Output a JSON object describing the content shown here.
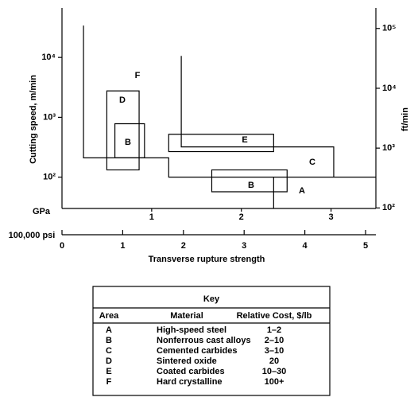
{
  "chart_data": {
    "type": "region",
    "y_label": "Cutting speed, m/min",
    "y2_label": "ft/min",
    "x_label": "GPa",
    "x2_label": "100,000 psi",
    "x_title": "Transverse rupture strength",
    "xlim": [
      0,
      3.5
    ],
    "xticks": [
      1,
      2,
      3
    ],
    "x2lim": [
      0,
      5.17
    ],
    "x2ticks": [
      0,
      1,
      2,
      3,
      4,
      5
    ],
    "ylim": [
      30,
      67000
    ],
    "yticks": [
      {
        "value": 100,
        "label": "10²"
      },
      {
        "value": 1000,
        "label": "10³"
      },
      {
        "value": 10000,
        "label": "10⁴"
      }
    ],
    "y2lim": [
      98,
      220000
    ],
    "y2ticks": [
      {
        "value": 100,
        "label": "10²"
      },
      {
        "value": 1000,
        "label": "10³"
      },
      {
        "value": 10000,
        "label": "10⁴"
      },
      {
        "value": 100000,
        "label": "10⁵"
      }
    ],
    "log_y": true,
    "color": "#000000",
    "regions": [
      {
        "label": "F",
        "x": [
          0.24,
          0.24,
          1.19,
          1.19,
          3.5
        ],
        "y": [
          34000,
          210,
          210,
          100,
          100
        ],
        "closed": false
      },
      {
        "label": "C",
        "x": [
          1.33,
          1.33,
          3.03,
          3.03
        ],
        "y": [
          10600,
          320,
          320,
          100
        ],
        "closed": false
      },
      {
        "label": "A",
        "x": [
          2.36,
          2.36
        ],
        "y": [
          30,
          100
        ],
        "closed": false
      },
      {
        "label": "D",
        "x": [
          0.5,
          0.86,
          0.86,
          0.5
        ],
        "y": [
          2760,
          2760,
          132,
          132
        ],
        "closed": true
      },
      {
        "label": "B",
        "x": [
          0.59,
          0.92,
          0.92,
          0.59
        ],
        "y": [
          780,
          780,
          210,
          210
        ],
        "closed": true
      },
      {
        "label": "B",
        "x": [
          1.67,
          2.51,
          2.51,
          1.67
        ],
        "y": [
          132,
          132,
          57,
          57
        ],
        "closed": true
      },
      {
        "label": "E",
        "x": [
          1.19,
          2.36,
          2.36,
          1.19
        ],
        "y": [
          520,
          520,
          267,
          267
        ],
        "closed": true
      }
    ]
  },
  "key": {
    "title": "Key",
    "columns": [
      "Area",
      "Material",
      "Relative Cost, $/lb"
    ],
    "rows": [
      [
        "A",
        "High-speed steel",
        "1–2"
      ],
      [
        "B",
        "Nonferrous cast alloys",
        "2–10"
      ],
      [
        "C",
        "Cemented carbides",
        "3–10"
      ],
      [
        "D",
        "Sintered oxide",
        "20"
      ],
      [
        "E",
        "Coated carbides",
        "10–30"
      ],
      [
        "F",
        "Hard crystalline",
        "100+"
      ]
    ]
  }
}
